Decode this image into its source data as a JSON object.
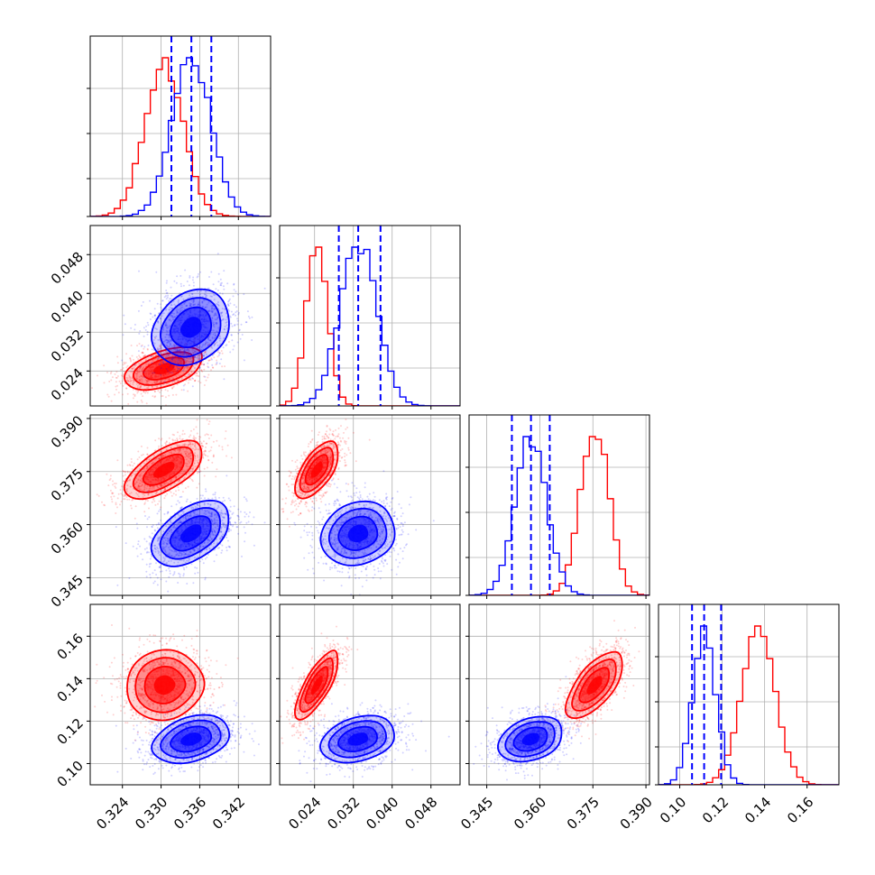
{
  "chart_data": {
    "type": "corner",
    "grid": true,
    "parameters": [
      {
        "ticks": [
          0.324,
          0.33,
          0.336,
          0.342
        ],
        "tick_labels": [
          "0.324",
          "0.330",
          "0.336",
          "0.342"
        ],
        "range": [
          0.319,
          0.347
        ]
      },
      {
        "ticks": [
          0.024,
          0.032,
          0.04,
          0.048
        ],
        "tick_labels": [
          "0.024",
          "0.032",
          "0.040",
          "0.048"
        ],
        "range": [
          0.0168,
          0.054
        ]
      },
      {
        "ticks": [
          0.345,
          0.36,
          0.375,
          0.39
        ],
        "tick_labels": [
          "0.345",
          "0.360",
          "0.375",
          "0.390"
        ],
        "range": [
          0.34,
          0.391
        ]
      },
      {
        "ticks": [
          0.1,
          0.12,
          0.14,
          0.16
        ],
        "tick_labels": [
          "0.10",
          "0.12",
          "0.14",
          "0.16"
        ],
        "range": [
          0.09,
          0.175
        ]
      }
    ],
    "series": [
      {
        "color": "#ff0000",
        "mean": [
          0.3305,
          0.0245,
          0.3755,
          0.137
        ],
        "std": [
          0.003,
          0.0022,
          0.004,
          0.008
        ],
        "corr": {
          "0-1": 0.45,
          "0-2": 0.6,
          "0-3": 0.05,
          "1-2": 0.6,
          "1-3": 0.75,
          "2-3": 0.65
        }
      },
      {
        "color": "#0000ff",
        "mean": [
          0.3347,
          0.033,
          0.3575,
          0.1115
        ],
        "std": [
          0.003,
          0.0038,
          0.0045,
          0.0055
        ],
        "corr": {
          "0-1": 0.2,
          "0-2": 0.45,
          "0-3": 0.3,
          "1-2": 0.1,
          "1-3": 0.25,
          "2-3": 0.3
        }
      }
    ],
    "quantile_lines": {
      "color": "#0000ff",
      "style": "dashed",
      "values": [
        [
          0.3316,
          0.3347,
          0.3378
        ],
        [
          0.029,
          0.033,
          0.0376
        ],
        [
          0.3521,
          0.3575,
          0.3628
        ],
        [
          0.1058,
          0.1115,
          0.1195
        ]
      ]
    }
  }
}
